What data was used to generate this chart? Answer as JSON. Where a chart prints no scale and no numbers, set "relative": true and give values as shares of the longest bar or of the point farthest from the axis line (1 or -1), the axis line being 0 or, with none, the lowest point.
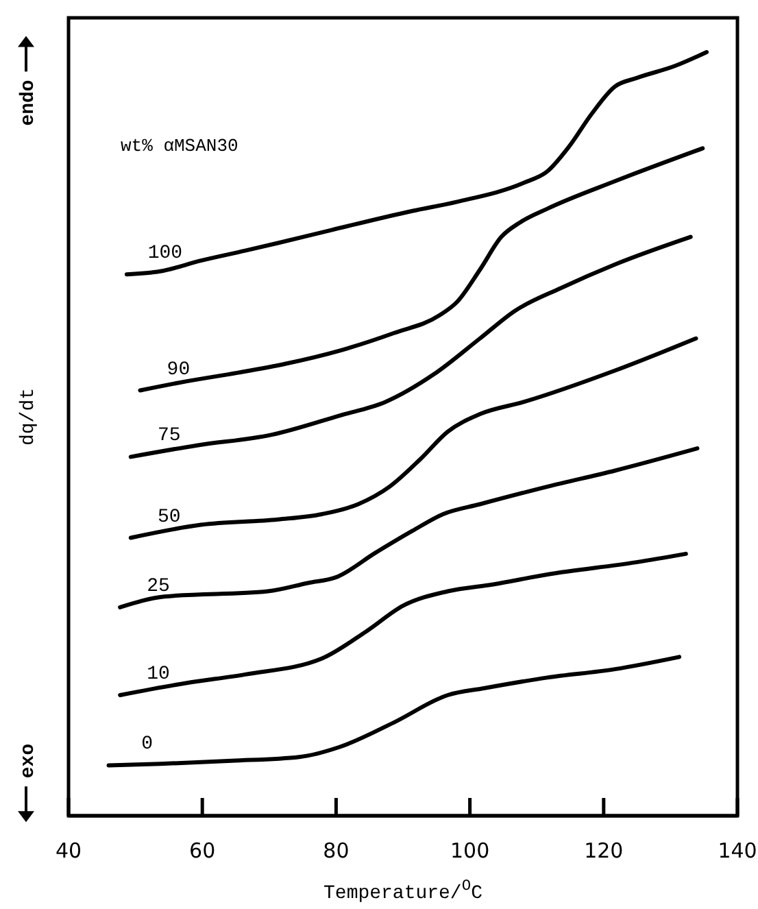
{
  "chart_data": {
    "type": "line",
    "relative": true,
    "xlabel": "Temperature/$^{O}$C",
    "ylabel": "dq/dt",
    "legend_title": "wt% αMSAN30",
    "annotations": [
      "endo",
      "exo"
    ],
    "xlim": [
      40,
      140
    ],
    "xticks": [
      40,
      60,
      80,
      100,
      120,
      140
    ],
    "grid": false,
    "legend": false,
    "marker": "none",
    "line_style": "solid",
    "series": [
      {
        "name": "100",
        "color": "#000000",
        "x": [
          48.7,
          53.7,
          59.8,
          66.4,
          71.3,
          79.3,
          91.4,
          98.1,
          108.1,
          111.6,
          114.8,
          118.2,
          121.7,
          124.9,
          130.7,
          135.4
        ],
        "values": [
          0.709,
          0.713,
          0.727,
          0.74,
          0.75,
          0.767,
          0.792,
          0.804,
          0.829,
          0.844,
          0.876,
          0.919,
          0.955,
          0.966,
          0.982,
          1
        ]
      },
      {
        "name": "90",
        "color": "#000000",
        "x": [
          50.7,
          57.7,
          65.2,
          72.5,
          80.5,
          88.6,
          95.4,
          98.1,
          101.5,
          104.7,
          107.5,
          111.6,
          121.7,
          134.8
        ],
        "values": [
          0.557,
          0.569,
          0.58,
          0.592,
          0.609,
          0.632,
          0.655,
          0.673,
          0.715,
          0.758,
          0.777,
          0.795,
          0.831,
          0.874
        ]
      },
      {
        "name": "75",
        "color": "#000000",
        "x": [
          49.3,
          59.2,
          70.4,
          80.5,
          87.4,
          94.6,
          101.5,
          106.7,
          113.6,
          121.7,
          133.0
        ],
        "values": [
          0.47,
          0.485,
          0.499,
          0.524,
          0.542,
          0.578,
          0.625,
          0.661,
          0.691,
          0.722,
          0.758
        ]
      },
      {
        "name": "50",
        "color": "#000000",
        "x": [
          49.3,
          59.8,
          71.3,
          77.9,
          83.3,
          88.0,
          92.6,
          96.7,
          101.5,
          108.1,
          121.7,
          133.8
        ],
        "values": [
          0.364,
          0.381,
          0.388,
          0.395,
          0.408,
          0.431,
          0.467,
          0.503,
          0.526,
          0.542,
          0.583,
          0.625
        ]
      },
      {
        "name": "25",
        "color": "#000000",
        "x": [
          47.7,
          54.3,
          69.8,
          75.9,
          79.9,
          86.0,
          91.4,
          96.0,
          101.5,
          111.6,
          121.7,
          134.0
        ],
        "values": [
          0.273,
          0.287,
          0.294,
          0.305,
          0.312,
          0.345,
          0.373,
          0.395,
          0.408,
          0.431,
          0.452,
          0.481
        ]
      },
      {
        "name": "10",
        "color": "#000000",
        "x": [
          47.7,
          57.7,
          66.4,
          77.9,
          84.6,
          90.0,
          96.7,
          103.5,
          111.6,
          124.9,
          132.3
        ],
        "values": [
          0.158,
          0.174,
          0.185,
          0.206,
          0.242,
          0.275,
          0.294,
          0.303,
          0.316,
          0.332,
          0.343
        ]
      },
      {
        "name": "0",
        "color": "#000000",
        "x": [
          46.0,
          53.7,
          64.4,
          74.5,
          80.5,
          88.6,
          96.7,
          102.1,
          111.6,
          121.7,
          131.3
        ],
        "values": [
          0.066,
          0.068,
          0.072,
          0.077,
          0.09,
          0.122,
          0.158,
          0.167,
          0.181,
          0.192,
          0.208
        ]
      }
    ]
  }
}
